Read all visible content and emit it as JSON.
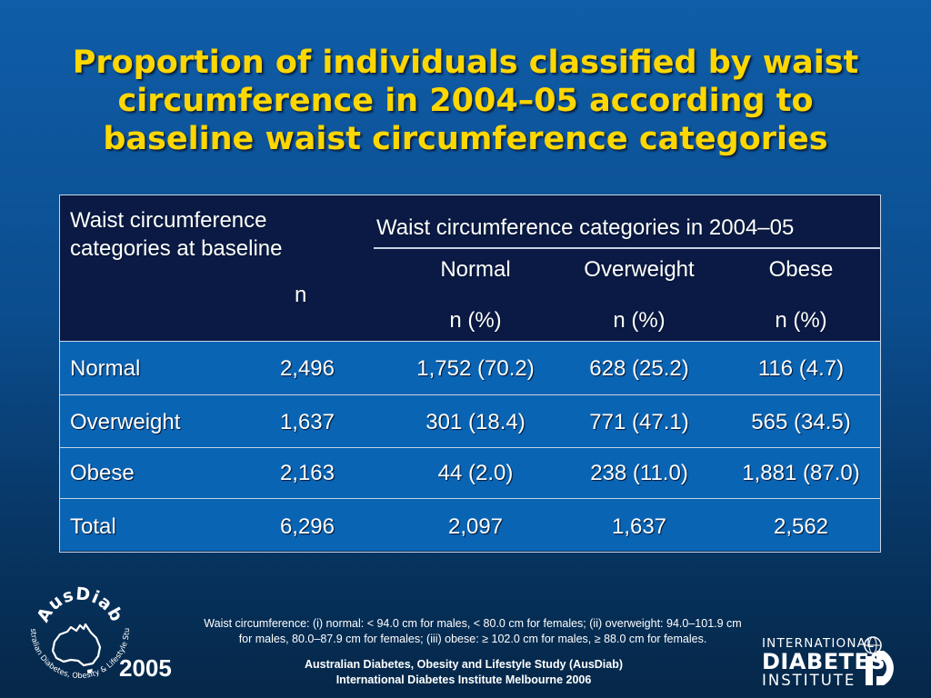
{
  "title": {
    "line1": "Proportion of individuals classified by waist",
    "line2": "circumference in 2004–05 according to",
    "line3": "baseline waist circumference categories"
  },
  "table": {
    "baseline_header_line1": "Waist circumference",
    "baseline_header_line2": "categories at baseline",
    "n_header": "n",
    "group_header": "Waist circumference categories in 2004–05",
    "columns": [
      {
        "name": "Normal",
        "unit": "n (%)"
      },
      {
        "name": "Overweight",
        "unit": "n (%)"
      },
      {
        "name": "Obese",
        "unit": "n (%)"
      }
    ],
    "rows": [
      {
        "category": "Normal",
        "n": "2,496",
        "values": [
          "1,752 (70.2)",
          "628 (25.2)",
          "116 (4.7)"
        ]
      },
      {
        "category": "Overweight",
        "n": "1,637",
        "values": [
          "301 (18.4)",
          "771 (47.1)",
          "565 (34.5)"
        ]
      },
      {
        "category": "Obese",
        "n": "2,163",
        "values": [
          "44 (2.0)",
          "238 (11.0)",
          "1,881 (87.0)"
        ]
      },
      {
        "category": "Total",
        "n": "6,296",
        "values": [
          "2,097",
          "1,637",
          "2,562"
        ]
      }
    ]
  },
  "footnote": {
    "line1": "Waist circumference: (i) normal: < 94.0 cm for males, < 80.0 cm for females; (ii) overweight: 94.0–101.9 cm",
    "line2": "for males, 80.0–87.9 cm for females; (iii) obese: ≥ 102.0 cm for males, ≥ 88.0 cm for females."
  },
  "credit": {
    "line1": "Australian Diabetes, Obesity and Lifestyle Study (AusDiab)",
    "line2": "International Diabetes Institute Melbourne 2006"
  },
  "ausdiab_logo": {
    "name": "AusDiab",
    "tagline": "Australian Diabetes, Obesity & Lifestyle Study",
    "year": "2005"
  },
  "idi_logo": {
    "line1": "INTERNATIONAL",
    "line2": "DIABETES",
    "line3": "INSTITUTE"
  },
  "colors": {
    "title": "#ffd700",
    "header_bg": "#0a1a44",
    "row_bg": "#0a64b4"
  }
}
